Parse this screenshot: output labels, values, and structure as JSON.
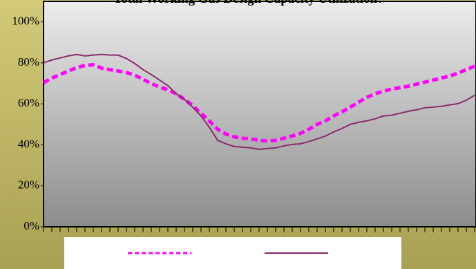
{
  "chart_data": {
    "type": "line",
    "title": "Total Working Gas Design Capacity Utilization?",
    "ylim": [
      0,
      110
    ],
    "yticks": [
      {
        "value": 0,
        "label": "0%"
      },
      {
        "value": 20,
        "label": "20%"
      },
      {
        "value": 40,
        "label": "40%"
      },
      {
        "value": 60,
        "label": "60%"
      },
      {
        "value": 80,
        "label": "80%"
      },
      {
        "value": 100,
        "label": "100%"
      }
    ],
    "series": [
      {
        "color": "#ff00ff",
        "dashed": true,
        "values": [
          70.3,
          72.6,
          74.3,
          76,
          77.7,
          78.7,
          79.1,
          77.4,
          76.7,
          76,
          75.3,
          74,
          72,
          69.9,
          68.2,
          66.9,
          64.9,
          62.2,
          59.1,
          55.4,
          51.7,
          47.6,
          45.3,
          43.9,
          43.2,
          42.9,
          42.2,
          41.9,
          42.2,
          43.2,
          44.3,
          45.6,
          47.6,
          50,
          51.7,
          54.1,
          56.1,
          58.4,
          60.8,
          63.2,
          64.9,
          66.2,
          67.2,
          67.9,
          68.6,
          69.6,
          70.6,
          71.6,
          72.6,
          73.6,
          75,
          76.7,
          78.4
        ]
      },
      {
        "color": "#8b2a6b",
        "dashed": false,
        "values": [
          80,
          81.4,
          82.4,
          83.4,
          84.1,
          83.4,
          83.8,
          84.1,
          83.8,
          83.8,
          82.1,
          79.7,
          76.7,
          74.3,
          71.6,
          68.9,
          64.9,
          62.2,
          58.4,
          54.1,
          48.6,
          42.2,
          40.5,
          39.2,
          38.9,
          38.5,
          37.8,
          38.2,
          38.5,
          39.5,
          40.2,
          40.5,
          41.6,
          42.9,
          44.3,
          46.3,
          48,
          50,
          51,
          51.7,
          52.7,
          54.1,
          54.4,
          55.4,
          56.4,
          57.1,
          58.1,
          58.4,
          58.8,
          59.5,
          60.1,
          61.8,
          64.2
        ]
      }
    ]
  }
}
